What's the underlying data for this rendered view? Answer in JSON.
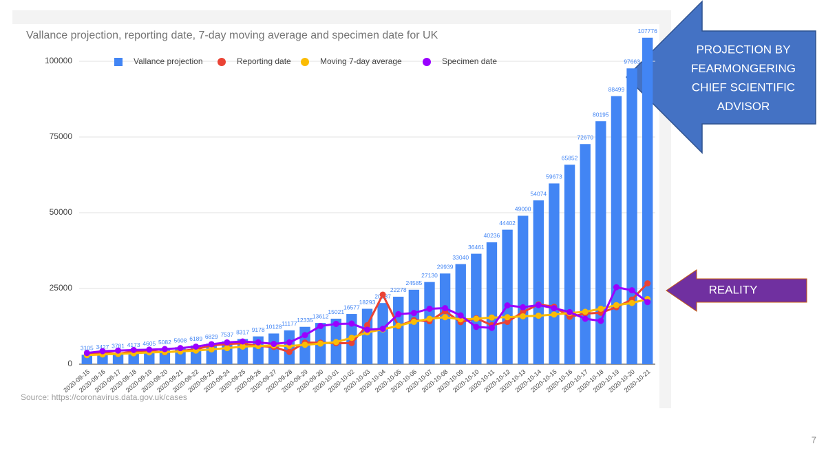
{
  "chart_data": {
    "type": "bar",
    "title": "Vallance projection, reporting date, 7-day moving average and specimen date for UK",
    "source": "Source: https://coronavirus.data.gov.uk/cases",
    "categories": [
      "2020-09-15",
      "2020-09-16",
      "2020-09-17",
      "2020-09-18",
      "2020-09-19",
      "2020-09-20",
      "2020-09-21",
      "2020-09-22",
      "2020-09-23",
      "2020-09-24",
      "2020-09-25",
      "2020-09-26",
      "2020-09-27",
      "2020-09-28",
      "2020-09-29",
      "2020-09-30",
      "2020-10-01",
      "2020-10-02",
      "2020-10-03",
      "2020-10-04",
      "2020-10-05",
      "2020-10-06",
      "2020-10-07",
      "2020-10-08",
      "2020-10-09",
      "2020-10-10",
      "2020-10-11",
      "2020-10-12",
      "2020-10-13",
      "2020-10-14",
      "2020-10-15",
      "2020-10-16",
      "2020-10-17",
      "2020-10-18",
      "2020-10-19",
      "2020-10-20",
      "2020-10-21"
    ],
    "series": [
      {
        "name": "Vallance projection",
        "type": "bar",
        "color": "#4285f4",
        "values": [
          3105,
          3427,
          3781,
          4173,
          4605,
          5082,
          5608,
          6189,
          6829,
          7537,
          8317,
          9178,
          10128,
          11177,
          12335,
          13612,
          15021,
          16577,
          18293,
          20187,
          22278,
          24585,
          27130,
          29939,
          33040,
          36461,
          40236,
          44402,
          49000,
          54074,
          59673,
          65852,
          72670,
          80195,
          88499,
          97663,
          107776
        ]
      },
      {
        "name": "Reporting date",
        "type": "line",
        "color": "#ea4335",
        "values": [
          3100,
          3990,
          3395,
          4322,
          4422,
          3899,
          4368,
          4926,
          6178,
          6634,
          6874,
          6042,
          5693,
          4044,
          7143,
          7108,
          6914,
          6968,
          12872,
          22961,
          12594,
          14542,
          14162,
          17540,
          13864,
          15166,
          12872,
          13972,
          17234,
          19724,
          18980,
          15650,
          16717,
          16982,
          18804,
          21331,
          26688
        ]
      },
      {
        "name": "Moving 7-day average",
        "type": "line",
        "color": "#fbbc04",
        "values": [
          3000,
          3200,
          3400,
          3600,
          3900,
          4000,
          4200,
          4500,
          4900,
          5300,
          5800,
          6000,
          6200,
          6000,
          6400,
          6800,
          7300,
          8700,
          10500,
          11500,
          12700,
          14000,
          15000,
          15500,
          14800,
          15000,
          15400,
          15500,
          15800,
          16000,
          16400,
          16900,
          17300,
          18300,
          19500,
          20200,
          21500
        ]
      },
      {
        "name": "Specimen date",
        "type": "line",
        "color": "#9900ff",
        "values": [
          3700,
          4300,
          4500,
          4700,
          4800,
          5000,
          5300,
          5800,
          6600,
          7200,
          7500,
          7200,
          6700,
          7200,
          9600,
          12600,
          13300,
          13400,
          11400,
          11700,
          16500,
          16900,
          18300,
          18500,
          16100,
          12300,
          12000,
          19400,
          18800,
          19500,
          18500,
          17200,
          15000,
          14300,
          25400,
          24400,
          20500
        ]
      }
    ],
    "ylim": [
      0,
      110000
    ],
    "yticks": [
      0,
      25000,
      50000,
      75000,
      100000
    ],
    "grid": true,
    "legend": "top",
    "annotations": [
      {
        "lines": [
          "PROJECTION BY",
          "FEARMONGERING",
          "CHIEF SCIENTIFIC",
          "ADVISOR"
        ],
        "color": "#4472c4"
      },
      {
        "lines": [
          "REALITY"
        ],
        "color": "#7030a0"
      }
    ]
  },
  "slide_number": "7"
}
